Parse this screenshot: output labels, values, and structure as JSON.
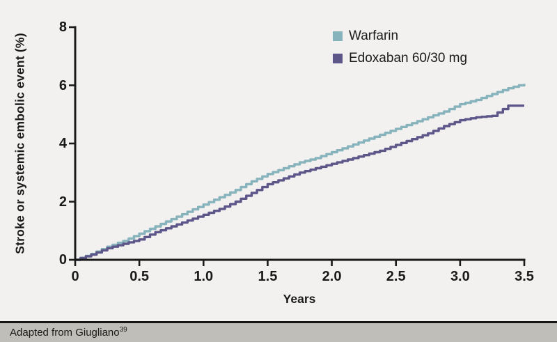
{
  "footer": {
    "text": "Adapted from Giugliano",
    "superscript": "39"
  },
  "chart_data": {
    "type": "line",
    "subtype": "kaplan-meier-step",
    "title": "",
    "xlabel": "Years",
    "ylabel": "Stroke or systemic embolic event (%)",
    "xlim": [
      0,
      3.5
    ],
    "ylim": [
      0,
      8
    ],
    "grid": false,
    "legend_position": "top-center-inside",
    "x_ticks": [
      0,
      0.5,
      1.0,
      1.5,
      2.0,
      2.5,
      3.0,
      3.5
    ],
    "x_tick_labels": [
      "0",
      "0.5",
      "1.0",
      "1.5",
      "2.0",
      "2.5",
      "3.0",
      "3.5"
    ],
    "y_ticks": [
      0,
      2,
      4,
      6,
      8
    ],
    "y_tick_labels": [
      "0",
      "2",
      "4",
      "6",
      "8"
    ],
    "axis_color": "#1a1a1a",
    "x": [
      0,
      0.125,
      0.25,
      0.375,
      0.5,
      0.625,
      0.75,
      0.875,
      1.0,
      1.125,
      1.25,
      1.375,
      1.5,
      1.625,
      1.75,
      1.875,
      2.0,
      2.125,
      2.25,
      2.375,
      2.5,
      2.625,
      2.75,
      2.875,
      3.0,
      3.125,
      3.25,
      3.375,
      3.5
    ],
    "series": [
      {
        "name": "Warfarin",
        "color": "#87b3bc",
        "values": [
          0,
          0.2,
          0.45,
          0.65,
          0.9,
          1.15,
          1.4,
          1.65,
          1.9,
          2.15,
          2.4,
          2.7,
          2.95,
          3.15,
          3.35,
          3.5,
          3.7,
          3.9,
          4.1,
          4.3,
          4.5,
          4.7,
          4.9,
          5.1,
          5.35,
          5.5,
          5.7,
          5.9,
          6.05
        ]
      },
      {
        "name": "Edoxaban 60/30 mg",
        "color": "#5c5689",
        "values": [
          0,
          0.18,
          0.4,
          0.55,
          0.7,
          0.95,
          1.15,
          1.35,
          1.55,
          1.75,
          2.0,
          2.3,
          2.6,
          2.8,
          3.0,
          3.15,
          3.3,
          3.45,
          3.6,
          3.75,
          3.95,
          4.15,
          4.35,
          4.6,
          4.8,
          4.9,
          4.95,
          5.3,
          5.3
        ]
      }
    ]
  }
}
